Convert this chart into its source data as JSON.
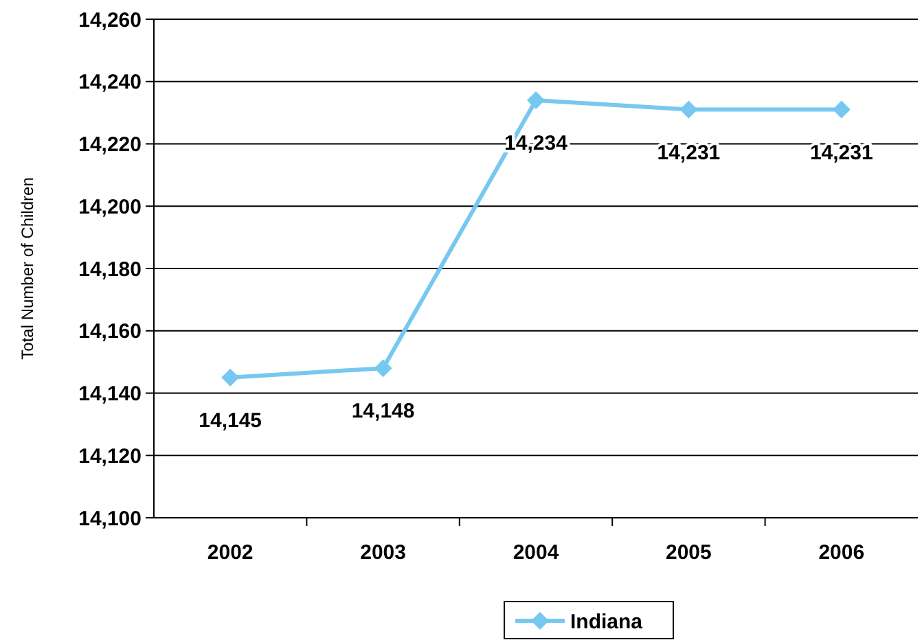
{
  "chart_data": {
    "type": "line",
    "categories": [
      "2002",
      "2003",
      "2004",
      "2005",
      "2006"
    ],
    "series": [
      {
        "name": "Indiana",
        "color": "#77c8f0",
        "values": [
          14145,
          14148,
          14234,
          14231,
          14231
        ],
        "value_labels": [
          "14,145",
          "14,148",
          "14,234",
          "14,231",
          "14,231"
        ]
      }
    ],
    "ylabel": "Total Number of Children",
    "ylim": [
      14100,
      14260
    ],
    "yticks": [
      {
        "value": 14100,
        "label": "14,100"
      },
      {
        "value": 14120,
        "label": "14,120"
      },
      {
        "value": 14140,
        "label": "14,140"
      },
      {
        "value": 14160,
        "label": "14,160"
      },
      {
        "value": 14180,
        "label": "14,180"
      },
      {
        "value": 14200,
        "label": "14,200"
      },
      {
        "value": 14220,
        "label": "14,220"
      },
      {
        "value": 14240,
        "label": "14,240"
      },
      {
        "value": 14260,
        "label": "14,260"
      }
    ],
    "grid": "y",
    "legend": "bottom",
    "marker": "diamond",
    "line_style": "solid"
  }
}
